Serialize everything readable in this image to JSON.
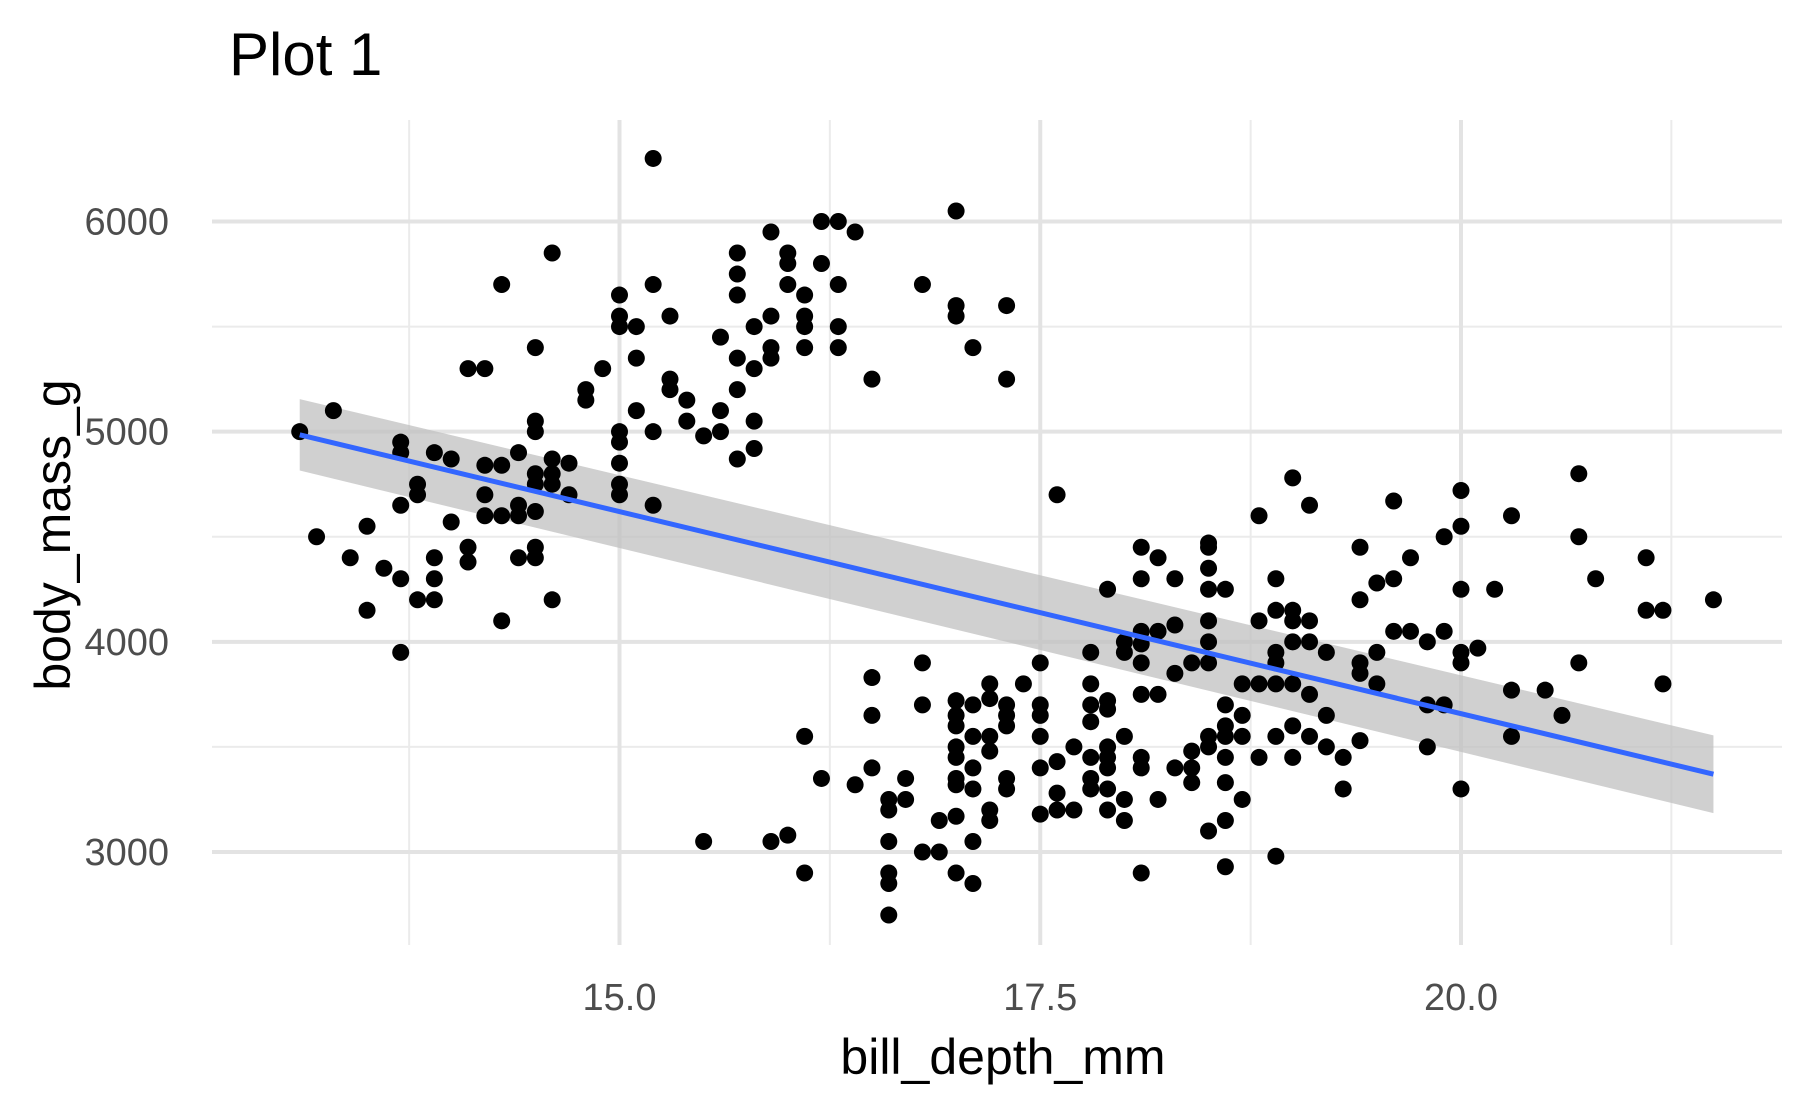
{
  "chart_data": {
    "type": "scatter",
    "title": "Plot 1",
    "xlabel": "bill_depth_mm",
    "ylabel": "body_mass_g",
    "xlim": [
      13.1,
      21.5
    ],
    "ylim": [
      2700,
      6300
    ],
    "x_ticks": [
      15.0,
      17.5,
      20.0
    ],
    "x_tick_labels": [
      "15.0",
      "17.5",
      "20.0"
    ],
    "y_ticks": [
      3000,
      4000,
      5000,
      6000
    ],
    "y_tick_labels": [
      "3000",
      "4000",
      "5000",
      "6000"
    ],
    "grid": true,
    "point_color": "#000000",
    "trend_color": "#3366ff",
    "band_color": "#c0c0c0",
    "trend_line": {
      "x": [
        13.1,
        21.5
      ],
      "y": [
        4985,
        3370
      ]
    },
    "confidence_band": {
      "x": [
        13.1,
        21.5
      ],
      "lower": [
        4815,
        3185
      ],
      "upper": [
        5155,
        3555
      ]
    },
    "points": [
      [
        13.1,
        5000
      ],
      [
        13.3,
        5100
      ],
      [
        13.2,
        4500
      ],
      [
        13.4,
        4400
      ],
      [
        13.5,
        4550
      ],
      [
        13.5,
        4150
      ],
      [
        13.6,
        4350
      ],
      [
        13.7,
        4950
      ],
      [
        13.7,
        4900
      ],
      [
        13.7,
        4650
      ],
      [
        13.7,
        4300
      ],
      [
        13.7,
        3950
      ],
      [
        13.8,
        4750
      ],
      [
        13.8,
        4700
      ],
      [
        13.8,
        4200
      ],
      [
        13.9,
        4900
      ],
      [
        13.9,
        4400
      ],
      [
        13.9,
        4300
      ],
      [
        13.9,
        4200
      ],
      [
        14.0,
        4870
      ],
      [
        14.0,
        4570
      ],
      [
        14.1,
        5300
      ],
      [
        14.1,
        4450
      ],
      [
        14.1,
        4380
      ],
      [
        14.2,
        5300
      ],
      [
        14.2,
        4840
      ],
      [
        14.2,
        4700
      ],
      [
        14.2,
        4600
      ],
      [
        14.3,
        5700
      ],
      [
        14.3,
        4840
      ],
      [
        14.3,
        4600
      ],
      [
        14.3,
        4100
      ],
      [
        14.4,
        4900
      ],
      [
        14.4,
        4650
      ],
      [
        14.4,
        4600
      ],
      [
        14.4,
        4400
      ],
      [
        14.5,
        5400
      ],
      [
        14.5,
        5050
      ],
      [
        14.5,
        5000
      ],
      [
        14.5,
        4800
      ],
      [
        14.5,
        4750
      ],
      [
        14.5,
        4620
      ],
      [
        14.5,
        4450
      ],
      [
        14.5,
        4400
      ],
      [
        14.6,
        5850
      ],
      [
        14.6,
        4870
      ],
      [
        14.6,
        4800
      ],
      [
        14.6,
        4750
      ],
      [
        14.6,
        4200
      ],
      [
        14.7,
        4850
      ],
      [
        14.7,
        4700
      ],
      [
        14.8,
        5200
      ],
      [
        14.8,
        5150
      ],
      [
        14.9,
        5300
      ],
      [
        15.0,
        5650
      ],
      [
        15.0,
        5550
      ],
      [
        15.0,
        5500
      ],
      [
        15.0,
        5000
      ],
      [
        15.0,
        4950
      ],
      [
        15.0,
        4850
      ],
      [
        15.0,
        4750
      ],
      [
        15.0,
        4700
      ],
      [
        15.1,
        5500
      ],
      [
        15.1,
        5350
      ],
      [
        15.1,
        5100
      ],
      [
        15.2,
        6300
      ],
      [
        15.2,
        5700
      ],
      [
        15.2,
        5000
      ],
      [
        15.2,
        4650
      ],
      [
        15.3,
        5550
      ],
      [
        15.3,
        5250
      ],
      [
        15.3,
        5200
      ],
      [
        15.4,
        5150
      ],
      [
        15.4,
        5050
      ],
      [
        15.5,
        4980
      ],
      [
        15.5,
        3050
      ],
      [
        15.6,
        5450
      ],
      [
        15.6,
        5100
      ],
      [
        15.6,
        5000
      ],
      [
        15.7,
        5850
      ],
      [
        15.7,
        5750
      ],
      [
        15.7,
        5650
      ],
      [
        15.7,
        5350
      ],
      [
        15.7,
        5200
      ],
      [
        15.7,
        4870
      ],
      [
        15.8,
        5500
      ],
      [
        15.8,
        5300
      ],
      [
        15.8,
        5050
      ],
      [
        15.8,
        4920
      ],
      [
        15.9,
        5950
      ],
      [
        15.9,
        5550
      ],
      [
        15.9,
        5400
      ],
      [
        15.9,
        5350
      ],
      [
        15.9,
        3050
      ],
      [
        16.0,
        5850
      ],
      [
        16.0,
        5800
      ],
      [
        16.0,
        5700
      ],
      [
        16.0,
        3080
      ],
      [
        16.1,
        5650
      ],
      [
        16.1,
        5550
      ],
      [
        16.1,
        5500
      ],
      [
        16.1,
        5400
      ],
      [
        16.1,
        3550
      ],
      [
        16.1,
        2900
      ],
      [
        16.2,
        6000
      ],
      [
        16.2,
        5800
      ],
      [
        16.2,
        3350
      ],
      [
        16.3,
        6000
      ],
      [
        16.3,
        5700
      ],
      [
        16.3,
        5500
      ],
      [
        16.3,
        5400
      ],
      [
        16.4,
        5950
      ],
      [
        16.4,
        3320
      ],
      [
        16.5,
        5250
      ],
      [
        16.5,
        3830
      ],
      [
        16.5,
        3650
      ],
      [
        16.5,
        3400
      ],
      [
        16.6,
        3250
      ],
      [
        16.6,
        3200
      ],
      [
        16.6,
        3050
      ],
      [
        16.6,
        2900
      ],
      [
        16.6,
        2850
      ],
      [
        16.6,
        2700
      ],
      [
        16.7,
        3350
      ],
      [
        16.7,
        3250
      ],
      [
        16.8,
        5700
      ],
      [
        16.8,
        3900
      ],
      [
        16.8,
        3700
      ],
      [
        16.8,
        3000
      ],
      [
        16.9,
        3150
      ],
      [
        16.9,
        3000
      ],
      [
        17.0,
        6050
      ],
      [
        17.0,
        5600
      ],
      [
        17.0,
        5550
      ],
      [
        17.0,
        3720
      ],
      [
        17.0,
        3650
      ],
      [
        17.0,
        3600
      ],
      [
        17.0,
        3500
      ],
      [
        17.0,
        3450
      ],
      [
        17.0,
        3350
      ],
      [
        17.0,
        3320
      ],
      [
        17.0,
        3170
      ],
      [
        17.0,
        2900
      ],
      [
        17.1,
        5400
      ],
      [
        17.1,
        3700
      ],
      [
        17.1,
        3550
      ],
      [
        17.1,
        3400
      ],
      [
        17.1,
        3300
      ],
      [
        17.1,
        3050
      ],
      [
        17.1,
        2850
      ],
      [
        17.2,
        3800
      ],
      [
        17.2,
        3730
      ],
      [
        17.2,
        3550
      ],
      [
        17.2,
        3480
      ],
      [
        17.2,
        3200
      ],
      [
        17.2,
        3150
      ],
      [
        17.3,
        5600
      ],
      [
        17.3,
        5250
      ],
      [
        17.3,
        3700
      ],
      [
        17.3,
        3650
      ],
      [
        17.3,
        3600
      ],
      [
        17.3,
        3350
      ],
      [
        17.3,
        3300
      ],
      [
        17.4,
        3800
      ],
      [
        17.5,
        3900
      ],
      [
        17.5,
        3700
      ],
      [
        17.5,
        3650
      ],
      [
        17.5,
        3550
      ],
      [
        17.5,
        3400
      ],
      [
        17.5,
        3180
      ],
      [
        17.6,
        4700
      ],
      [
        17.6,
        3430
      ],
      [
        17.6,
        3280
      ],
      [
        17.6,
        3200
      ],
      [
        17.7,
        3500
      ],
      [
        17.7,
        3200
      ],
      [
        17.8,
        3950
      ],
      [
        17.8,
        3800
      ],
      [
        17.8,
        3700
      ],
      [
        17.8,
        3620
      ],
      [
        17.8,
        3450
      ],
      [
        17.8,
        3350
      ],
      [
        17.8,
        3300
      ],
      [
        17.9,
        4250
      ],
      [
        17.9,
        3720
      ],
      [
        17.9,
        3680
      ],
      [
        17.9,
        3500
      ],
      [
        17.9,
        3450
      ],
      [
        17.9,
        3400
      ],
      [
        17.9,
        3300
      ],
      [
        17.9,
        3200
      ],
      [
        18.0,
        4000
      ],
      [
        18.0,
        3950
      ],
      [
        18.0,
        3550
      ],
      [
        18.0,
        3250
      ],
      [
        18.0,
        3150
      ],
      [
        18.1,
        4450
      ],
      [
        18.1,
        4300
      ],
      [
        18.1,
        4050
      ],
      [
        18.1,
        3990
      ],
      [
        18.1,
        3900
      ],
      [
        18.1,
        3750
      ],
      [
        18.1,
        3450
      ],
      [
        18.1,
        3400
      ],
      [
        18.1,
        2900
      ],
      [
        18.2,
        4400
      ],
      [
        18.2,
        4050
      ],
      [
        18.2,
        3750
      ],
      [
        18.2,
        3250
      ],
      [
        18.3,
        4300
      ],
      [
        18.3,
        4080
      ],
      [
        18.3,
        3850
      ],
      [
        18.3,
        3400
      ],
      [
        18.4,
        3900
      ],
      [
        18.4,
        3480
      ],
      [
        18.4,
        3400
      ],
      [
        18.4,
        3330
      ],
      [
        18.5,
        4470
      ],
      [
        18.5,
        4450
      ],
      [
        18.5,
        4350
      ],
      [
        18.5,
        4250
      ],
      [
        18.5,
        4100
      ],
      [
        18.5,
        4000
      ],
      [
        18.5,
        3900
      ],
      [
        18.5,
        3550
      ],
      [
        18.5,
        3500
      ],
      [
        18.5,
        3100
      ],
      [
        18.6,
        4250
      ],
      [
        18.6,
        3700
      ],
      [
        18.6,
        3600
      ],
      [
        18.6,
        3550
      ],
      [
        18.6,
        3450
      ],
      [
        18.6,
        3330
      ],
      [
        18.6,
        3150
      ],
      [
        18.6,
        2930
      ],
      [
        18.7,
        3800
      ],
      [
        18.7,
        3650
      ],
      [
        18.7,
        3550
      ],
      [
        18.7,
        3250
      ],
      [
        18.8,
        4600
      ],
      [
        18.8,
        4100
      ],
      [
        18.8,
        3800
      ],
      [
        18.8,
        3450
      ],
      [
        18.9,
        4300
      ],
      [
        18.9,
        4150
      ],
      [
        18.9,
        3950
      ],
      [
        18.9,
        3900
      ],
      [
        18.9,
        3800
      ],
      [
        18.9,
        3550
      ],
      [
        18.9,
        2980
      ],
      [
        19.0,
        4780
      ],
      [
        19.0,
        4150
      ],
      [
        19.0,
        4100
      ],
      [
        19.0,
        4000
      ],
      [
        19.0,
        3800
      ],
      [
        19.0,
        3600
      ],
      [
        19.0,
        3450
      ],
      [
        19.1,
        4650
      ],
      [
        19.1,
        4100
      ],
      [
        19.1,
        4000
      ],
      [
        19.1,
        3750
      ],
      [
        19.1,
        3550
      ],
      [
        19.2,
        3950
      ],
      [
        19.2,
        3650
      ],
      [
        19.2,
        3500
      ],
      [
        19.3,
        3450
      ],
      [
        19.3,
        3300
      ],
      [
        19.4,
        4450
      ],
      [
        19.4,
        4200
      ],
      [
        19.4,
        3900
      ],
      [
        19.4,
        3850
      ],
      [
        19.4,
        3530
      ],
      [
        19.5,
        4280
      ],
      [
        19.5,
        3950
      ],
      [
        19.5,
        3800
      ],
      [
        19.6,
        4670
      ],
      [
        19.6,
        4300
      ],
      [
        19.6,
        4050
      ],
      [
        19.7,
        4400
      ],
      [
        19.7,
        4050
      ],
      [
        19.8,
        4000
      ],
      [
        19.8,
        3700
      ],
      [
        19.8,
        3500
      ],
      [
        19.9,
        4500
      ],
      [
        19.9,
        4050
      ],
      [
        19.9,
        3700
      ],
      [
        20.0,
        4720
      ],
      [
        20.0,
        4550
      ],
      [
        20.0,
        4250
      ],
      [
        20.0,
        3950
      ],
      [
        20.0,
        3900
      ],
      [
        20.0,
        3300
      ],
      [
        20.1,
        3970
      ],
      [
        20.2,
        4250
      ],
      [
        20.3,
        4600
      ],
      [
        20.3,
        3770
      ],
      [
        20.3,
        3550
      ],
      [
        20.5,
        3770
      ],
      [
        20.6,
        3650
      ],
      [
        20.7,
        4800
      ],
      [
        20.7,
        4500
      ],
      [
        20.7,
        3900
      ],
      [
        20.8,
        4300
      ],
      [
        21.1,
        4400
      ],
      [
        21.1,
        4150
      ],
      [
        21.2,
        4150
      ],
      [
        21.2,
        3800
      ],
      [
        21.5,
        4200
      ]
    ]
  }
}
